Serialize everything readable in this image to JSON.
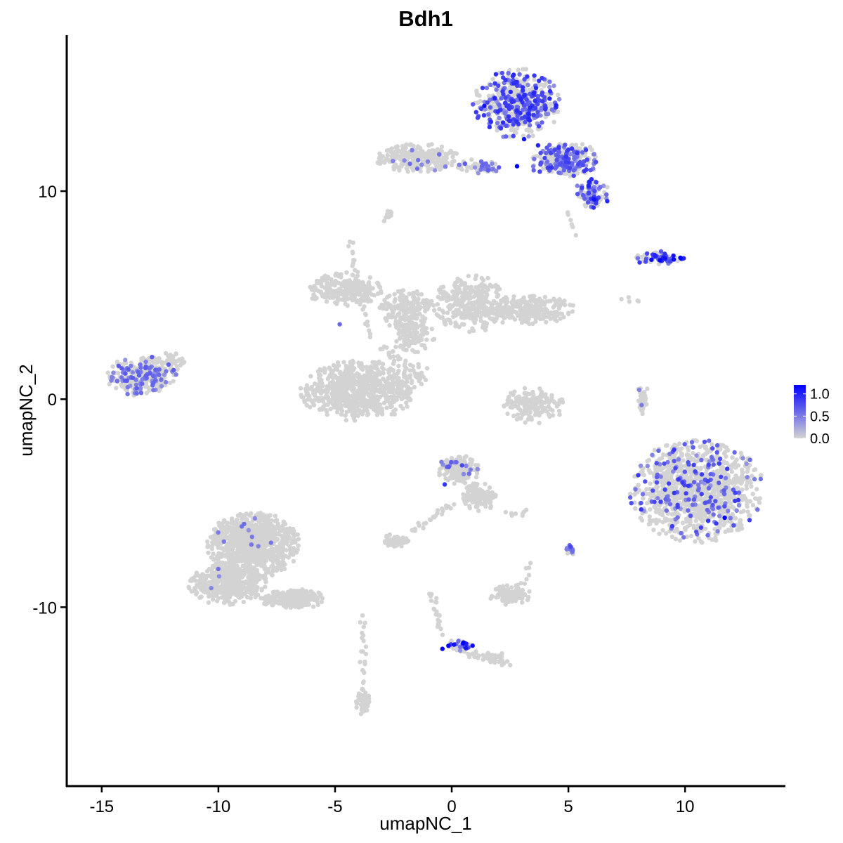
{
  "chart_data": {
    "type": "scatter",
    "title": "Bdh1",
    "xlabel": "umapNC_1",
    "ylabel": "umapNC_2",
    "xlim": [
      -16.5,
      14.3
    ],
    "ylim": [
      -18.6,
      17.5
    ],
    "x_ticks": [
      -15,
      -10,
      -5,
      0,
      5,
      10
    ],
    "x_tick_labels": [
      "-15",
      "-10",
      "-5",
      "0",
      "5",
      "10"
    ],
    "y_ticks": [
      -10,
      0,
      10
    ],
    "y_tick_labels": [
      "-10",
      "0",
      "10"
    ],
    "grid": false,
    "legend": {
      "placement": "right",
      "type": "colorbar",
      "min": 0.0,
      "max": 1.2,
      "ticks": [
        1.0,
        0.5,
        0.0
      ],
      "tick_labels": [
        "1.0",
        "0.5",
        "0.0"
      ],
      "low_color": "#d3d3d3",
      "high_color": "#0000ff"
    },
    "low_color": "#d3d3d3",
    "high_color": "#0000ff",
    "clusters": [
      {
        "cx": 2.8,
        "cy": 14.2,
        "rx": 1.9,
        "ry": 1.7,
        "n": 520,
        "expr_frac": 0.45,
        "expr_max": 1.0
      },
      {
        "cx": 4.8,
        "cy": 11.5,
        "rx": 1.6,
        "ry": 0.9,
        "n": 260,
        "expr_frac": 0.45,
        "expr_max": 0.9
      },
      {
        "cx": 6.0,
        "cy": 9.8,
        "rx": 0.8,
        "ry": 0.8,
        "n": 90,
        "expr_frac": 0.5,
        "expr_max": 1.0
      },
      {
        "cx": -1.5,
        "cy": 11.6,
        "rx": 1.8,
        "ry": 0.7,
        "n": 260,
        "expr_frac": 0.06,
        "expr_max": 0.6
      },
      {
        "cx": 1.2,
        "cy": 11.2,
        "rx": 1.0,
        "ry": 0.35,
        "n": 60,
        "expr_frac": 0.3,
        "expr_max": 0.7
      },
      {
        "cx": 8.9,
        "cy": 6.8,
        "rx": 1.2,
        "ry": 0.35,
        "n": 70,
        "expr_frac": 0.55,
        "expr_max": 1.2
      },
      {
        "cx": -13.3,
        "cy": 1.1,
        "rx": 1.5,
        "ry": 1.0,
        "n": 260,
        "expr_frac": 0.35,
        "expr_max": 0.7
      },
      {
        "cx": -4.6,
        "cy": 5.3,
        "rx": 1.7,
        "ry": 0.8,
        "n": 220,
        "expr_frac": 0.0,
        "expr_max": 0.0
      },
      {
        "cx": -1.9,
        "cy": 4.3,
        "rx": 1.2,
        "ry": 1.0,
        "n": 180,
        "expr_frac": 0.0,
        "expr_max": 0.0
      },
      {
        "cx": 0.8,
        "cy": 4.6,
        "rx": 1.6,
        "ry": 1.4,
        "n": 300,
        "expr_frac": 0.0,
        "expr_max": 0.0
      },
      {
        "cx": 3.2,
        "cy": 4.3,
        "rx": 2.1,
        "ry": 0.7,
        "n": 280,
        "expr_frac": 0.0,
        "expr_max": 0.0
      },
      {
        "cx": -4.0,
        "cy": 0.4,
        "rx": 2.5,
        "ry": 1.5,
        "n": 700,
        "expr_frac": 0.0,
        "expr_max": 0.0
      },
      {
        "cx": -1.7,
        "cy": 3.0,
        "rx": 1.0,
        "ry": 0.8,
        "n": 90,
        "expr_frac": 0.0,
        "expr_max": 0.0
      },
      {
        "cx": 3.5,
        "cy": -0.3,
        "rx": 1.3,
        "ry": 0.9,
        "n": 160,
        "expr_frac": 0.0,
        "expr_max": 0.0
      },
      {
        "cx": 10.5,
        "cy": -4.4,
        "rx": 2.9,
        "ry": 2.5,
        "n": 1100,
        "expr_frac": 0.14,
        "expr_max": 0.9
      },
      {
        "cx": 0.3,
        "cy": -3.4,
        "rx": 0.9,
        "ry": 0.7,
        "n": 180,
        "expr_frac": 0.04,
        "expr_max": 0.8
      },
      {
        "cx": 1.2,
        "cy": -4.7,
        "rx": 0.8,
        "ry": 0.7,
        "n": 120,
        "expr_frac": 0.0,
        "expr_max": 0.0
      },
      {
        "cx": -2.4,
        "cy": -6.8,
        "rx": 0.6,
        "ry": 0.35,
        "n": 60,
        "expr_frac": 0.0,
        "expr_max": 0.0
      },
      {
        "cx": -8.5,
        "cy": -7.0,
        "rx": 2.0,
        "ry": 1.6,
        "n": 900,
        "expr_frac": 0.005,
        "expr_max": 0.6
      },
      {
        "cx": -9.6,
        "cy": -8.9,
        "rx": 1.7,
        "ry": 1.0,
        "n": 450,
        "expr_frac": 0.005,
        "expr_max": 0.6
      },
      {
        "cx": -6.8,
        "cy": -9.6,
        "rx": 1.4,
        "ry": 0.5,
        "n": 200,
        "expr_frac": 0.0,
        "expr_max": 0.0
      },
      {
        "cx": -3.8,
        "cy": -14.6,
        "rx": 0.3,
        "ry": 0.7,
        "n": 60,
        "expr_frac": 0.0,
        "expr_max": 0.0
      },
      {
        "cx": 2.5,
        "cy": -9.4,
        "rx": 0.9,
        "ry": 0.5,
        "n": 100,
        "expr_frac": 0.0,
        "expr_max": 0.0
      },
      {
        "cx": 5.1,
        "cy": -7.3,
        "rx": 0.2,
        "ry": 0.3,
        "n": 18,
        "expr_frac": 0.5,
        "expr_max": 0.7
      },
      {
        "cx": 0.4,
        "cy": -11.8,
        "rx": 0.6,
        "ry": 0.3,
        "n": 40,
        "expr_frac": 0.4,
        "expr_max": 1.2
      },
      {
        "cx": 1.8,
        "cy": -12.4,
        "rx": 0.6,
        "ry": 0.25,
        "n": 25,
        "expr_frac": 0.0,
        "expr_max": 0.0
      },
      {
        "cx": 8.2,
        "cy": 0.0,
        "rx": 0.25,
        "ry": 0.9,
        "n": 35,
        "expr_frac": 0.15,
        "expr_max": 0.6
      },
      {
        "cx": -12.0,
        "cy": 1.8,
        "rx": 0.6,
        "ry": 0.5,
        "n": 40,
        "expr_frac": 0.0,
        "expr_max": 0.0
      }
    ],
    "strands": [
      {
        "from": [
          -4.4,
          7.6
        ],
        "to": [
          -3.5,
          3.0
        ],
        "n": 30
      },
      {
        "from": [
          -3.0,
          2.5
        ],
        "to": [
          -1.2,
          1.0
        ],
        "n": 25
      },
      {
        "from": [
          -2.6,
          2.3
        ],
        "to": [
          -1.8,
          -0.2
        ],
        "n": 20
      },
      {
        "from": [
          -1.5,
          1.5
        ],
        "to": [
          -1.4,
          1.5
        ],
        "n": 1
      },
      {
        "from": [
          -1.1,
          1.4
        ],
        "to": [
          -1.3,
          0.9
        ],
        "n": 1
      },
      {
        "from": [
          -1.6,
          1.6
        ],
        "to": [
          -1.4,
          0.8
        ],
        "n": 10
      },
      {
        "from": [
          -2.8,
          8.6
        ],
        "to": [
          -2.6,
          9.1
        ],
        "n": 10
      },
      {
        "from": [
          0.0,
          -5.0
        ],
        "to": [
          -1.7,
          -6.4
        ],
        "n": 25
      },
      {
        "from": [
          -3.8,
          -10.5
        ],
        "to": [
          -3.8,
          -13.6
        ],
        "n": 20
      },
      {
        "from": [
          -0.9,
          -9.3
        ],
        "to": [
          -0.4,
          -11.2
        ],
        "n": 20
      },
      {
        "from": [
          0.1,
          -12.0
        ],
        "to": [
          2.5,
          -12.8
        ],
        "n": 30
      },
      {
        "from": [
          -3.1,
          1.4
        ],
        "to": [
          -1.4,
          0.9
        ],
        "n": 12
      },
      {
        "from": [
          7.3,
          4.8
        ],
        "to": [
          8.0,
          4.6
        ],
        "n": 5
      },
      {
        "from": [
          5.0,
          9.0
        ],
        "to": [
          5.3,
          8.0
        ],
        "n": 6
      },
      {
        "from": [
          2.4,
          -5.5
        ],
        "to": [
          3.2,
          -5.4
        ],
        "n": 8
      },
      {
        "from": [
          2.9,
          -9.4
        ],
        "to": [
          3.3,
          -7.9
        ],
        "n": 10
      }
    ],
    "highlights": [
      {
        "x": 1.4,
        "y": 14.1,
        "v": 1.1
      },
      {
        "x": 3.1,
        "y": 12.5,
        "v": 1.1
      },
      {
        "x": 2.8,
        "y": 11.2,
        "v": 1.2
      },
      {
        "x": 3.7,
        "y": 12.2,
        "v": 1.0
      },
      {
        "x": 6.1,
        "y": 9.6,
        "v": 1.1
      },
      {
        "x": 9.8,
        "y": 6.8,
        "v": 1.2
      },
      {
        "x": 9.5,
        "y": 6.9,
        "v": 1.1
      },
      {
        "x": 11.7,
        "y": -5.7,
        "v": 1.2
      },
      {
        "x": -0.4,
        "y": -12.0,
        "v": 1.2
      },
      {
        "x": 0.5,
        "y": -11.7,
        "v": 1.2
      },
      {
        "x": 0.1,
        "y": -11.8,
        "v": 1.1
      },
      {
        "x": -0.3,
        "y": -4.1,
        "v": 0.9
      },
      {
        "x": -8.9,
        "y": -6.0,
        "v": 0.6
      },
      {
        "x": -4.8,
        "y": 3.6,
        "v": 0.6
      },
      {
        "x": 5.1,
        "y": -7.1,
        "v": 0.8
      }
    ]
  }
}
